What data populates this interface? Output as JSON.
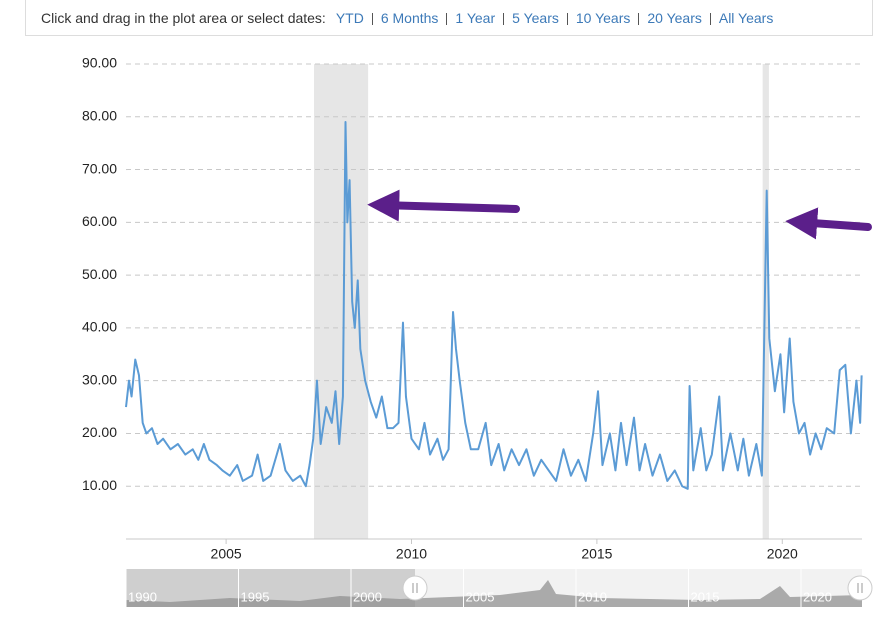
{
  "toolbar": {
    "prompt": "Click and drag in the plot area or select dates:",
    "ranges": [
      "YTD",
      "6 Months",
      "1 Year",
      "5 Years",
      "10 Years",
      "20 Years",
      "All Years"
    ]
  },
  "chart_data": {
    "type": "line",
    "x": [
      2002.3,
      2002.38,
      2002.45,
      2002.55,
      2002.65,
      2002.75,
      2002.85,
      2003.0,
      2003.15,
      2003.3,
      2003.5,
      2003.7,
      2003.9,
      2004.1,
      2004.25,
      2004.4,
      2004.55,
      2004.75,
      2004.9,
      2005.1,
      2005.3,
      2005.45,
      2005.7,
      2005.85,
      2006.0,
      2006.2,
      2006.45,
      2006.6,
      2006.8,
      2007.0,
      2007.15,
      2007.25,
      2007.35,
      2007.45,
      2007.55,
      2007.7,
      2007.85,
      2007.95,
      2008.05,
      2008.15,
      2008.22,
      2008.27,
      2008.33,
      2008.4,
      2008.47,
      2008.55,
      2008.62,
      2008.75,
      2008.9,
      2009.05,
      2009.2,
      2009.35,
      2009.5,
      2009.65,
      2009.77,
      2009.85,
      2010.0,
      2010.2,
      2010.35,
      2010.5,
      2010.7,
      2010.85,
      2011.0,
      2011.12,
      2011.2,
      2011.3,
      2011.45,
      2011.6,
      2011.8,
      2012.0,
      2012.15,
      2012.35,
      2012.5,
      2012.7,
      2012.9,
      2013.1,
      2013.3,
      2013.5,
      2013.7,
      2013.9,
      2014.1,
      2014.3,
      2014.5,
      2014.7,
      2014.9,
      2015.03,
      2015.15,
      2015.35,
      2015.5,
      2015.65,
      2015.8,
      2016.0,
      2016.15,
      2016.3,
      2016.5,
      2016.7,
      2016.9,
      2017.1,
      2017.3,
      2017.45,
      2017.5,
      2017.6,
      2017.8,
      2017.95,
      2018.1,
      2018.3,
      2018.4,
      2018.6,
      2018.8,
      2018.95,
      2019.1,
      2019.3,
      2019.45,
      2019.58,
      2019.65,
      2019.8,
      2019.95,
      2020.05,
      2020.2,
      2020.3,
      2020.45,
      2020.6,
      2020.75,
      2020.9,
      2021.05,
      2021.2,
      2021.4,
      2021.55,
      2021.7,
      2021.85,
      2022.0,
      2022.1,
      2022.14
    ],
    "series": [
      {
        "color": "#5b9bd5",
        "values": [
          25,
          30,
          27,
          34,
          31,
          22,
          20,
          21,
          18,
          19,
          17,
          18,
          16,
          17,
          15,
          18,
          15,
          14,
          13,
          12,
          14,
          11,
          12,
          16,
          11,
          12,
          18,
          13,
          11,
          12,
          10,
          14,
          19,
          30,
          18,
          25,
          22,
          28,
          18,
          27,
          79,
          60,
          68,
          45,
          40,
          49,
          36,
          30,
          26,
          23,
          27,
          21,
          21,
          22,
          41,
          27,
          19,
          17,
          22,
          16,
          19,
          15,
          17,
          43,
          36,
          30,
          22,
          17,
          17,
          22,
          14,
          18,
          13,
          17,
          14,
          17,
          12,
          15,
          13,
          11,
          17,
          12,
          15,
          11,
          20,
          28,
          14,
          20,
          13,
          22,
          14,
          23,
          13,
          18,
          12,
          16,
          11,
          13,
          10,
          9.5,
          29,
          13,
          21,
          13,
          16,
          27,
          13,
          20,
          13,
          19,
          12,
          18,
          12,
          66,
          38,
          28,
          35,
          24,
          38,
          26,
          20,
          22,
          16,
          20,
          17,
          21,
          20,
          32,
          33,
          20,
          30,
          22,
          31
        ]
      }
    ],
    "xlim": [
      2002.3,
      2022.15
    ],
    "xticks": [
      2005,
      2010,
      2015,
      2020
    ],
    "ylim": [
      0,
      90
    ],
    "yticks": [
      {
        "value": 10,
        "label": "10.00"
      },
      {
        "value": 20,
        "label": "20.00"
      },
      {
        "value": 30,
        "label": "30.00"
      },
      {
        "value": 40,
        "label": "40.00"
      },
      {
        "value": 50,
        "label": "50.00"
      },
      {
        "value": 60,
        "label": "60.00"
      },
      {
        "value": 70,
        "label": "70.00"
      },
      {
        "value": 80,
        "label": "80.00"
      },
      {
        "value": 90,
        "label": "90.00"
      }
    ],
    "grid": true,
    "bands": [
      {
        "from": 2007.37,
        "to": 2008.83,
        "color": "#e6e6e6"
      },
      {
        "from": 2019.47,
        "to": 2019.64,
        "color": "#e6e6e6"
      }
    ],
    "navigator": {
      "labels": [
        "1990",
        "1995",
        "2000",
        "2005",
        "2010",
        "2015",
        "2020"
      ]
    }
  }
}
